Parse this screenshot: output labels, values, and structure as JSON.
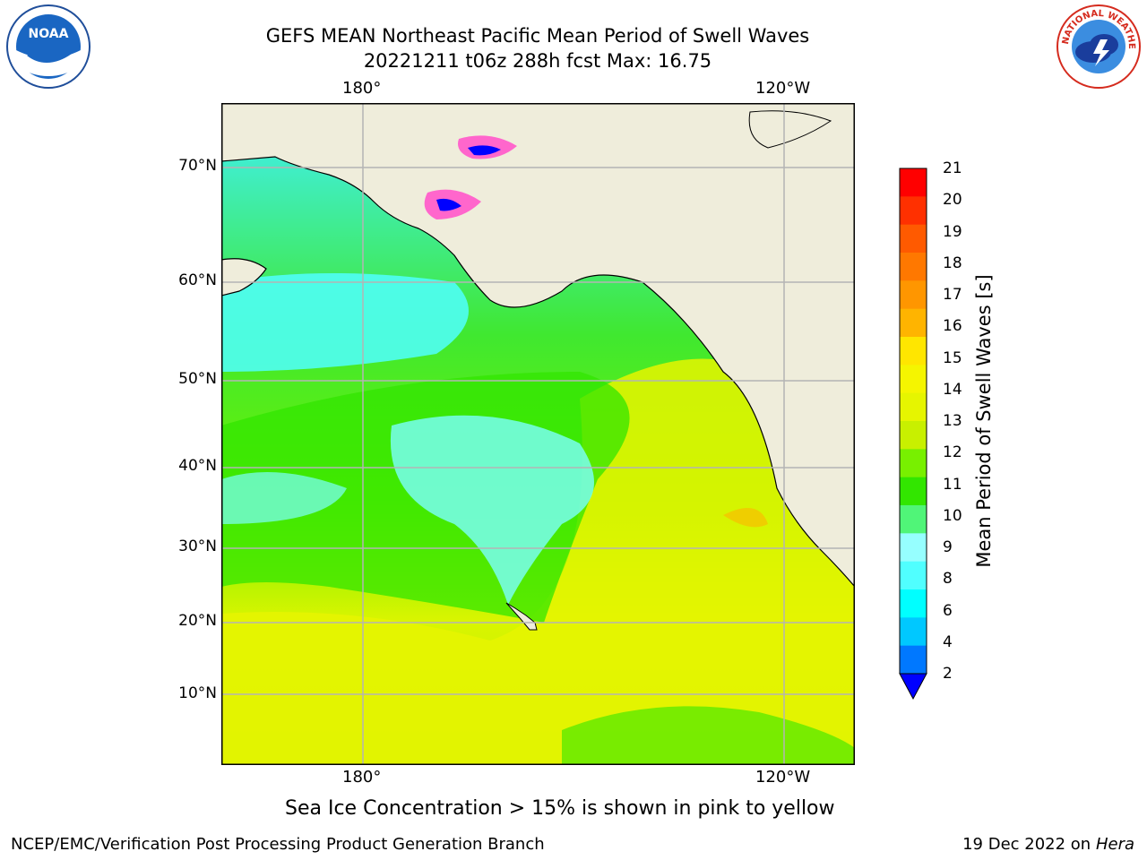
{
  "title_line1": "GEFS MEAN Northeast Pacific Mean Period of Swell Waves",
  "title_line2": "20221211 t06z 288h fcst   Max: 16.75",
  "lon_ticks_top": [
    "180°",
    "120°W"
  ],
  "lon_ticks_bottom": [
    "180°",
    "120°W"
  ],
  "lat_ticks": [
    "70°N",
    "60°N",
    "50°N",
    "40°N",
    "30°N",
    "20°N",
    "10°N"
  ],
  "colorbar": {
    "label": "Mean Period of Swell Waves [s]",
    "ticks": [
      "21",
      "20",
      "19",
      "18",
      "17",
      "16",
      "15",
      "14",
      "13",
      "12",
      "11",
      "10",
      "9",
      "8",
      "6",
      "4",
      "2"
    ],
    "colors": [
      "#ff0000",
      "#ff3000",
      "#ff5a00",
      "#ff7800",
      "#ff9600",
      "#ffb400",
      "#ffe600",
      "#f5f500",
      "#e6f500",
      "#c8f000",
      "#78f000",
      "#32e600",
      "#50f578",
      "#96ffff",
      "#50ffff",
      "#00ffff",
      "#00c8ff",
      "#0078ff",
      "#0000ff"
    ]
  },
  "caption": "Sea Ice Concentration > 15% is shown in pink to yellow",
  "footer_left": "NCEP/EMC/Verification Post Processing Product Generation Branch",
  "footer_right_date": "19 Dec 2022 on",
  "footer_right_host": "Hera",
  "noaa_logo_text": "NOAA",
  "nws_logo_text": "NATIONAL WEATHER SERVICE",
  "colors": {
    "land": "#efeddb",
    "grid": "#b4b4b4",
    "ocean_green": "#32e600",
    "ocean_cyan": "#50ffff",
    "ocean_yellow": "#e6f500"
  }
}
